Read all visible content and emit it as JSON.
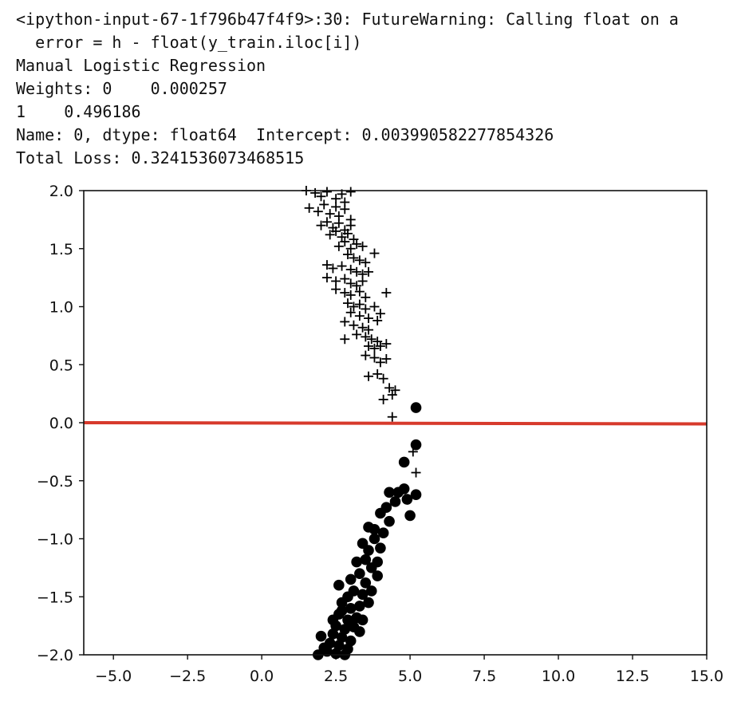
{
  "console": {
    "lines": [
      "<ipython-input-67-1f796b47f4f9>:30: FutureWarning: Calling float on a",
      "  error = h - float(y_train.iloc[i])",
      "Manual Logistic Regression",
      "Weights: 0    0.000257",
      "1    0.496186",
      "Name: 0, dtype: float64  Intercept: 0.003990582277854326",
      "Total Loss: 0.3241536073468515"
    ]
  },
  "chart_data": {
    "type": "scatter",
    "xlim": [
      -6,
      15
    ],
    "ylim": [
      -2.0,
      2.0
    ],
    "xticks": [
      -5.0,
      -2.5,
      0.0,
      2.5,
      5.0,
      7.5,
      10.0,
      12.5,
      15.0
    ],
    "xtick_labels": [
      "−5.0",
      "−2.5",
      "0.0",
      "2.5",
      "5.0",
      "7.5",
      "10.0",
      "12.5",
      "15.0"
    ],
    "yticks": [
      2.0,
      1.5,
      1.0,
      0.5,
      0.0,
      -0.5,
      -1.0,
      -1.5,
      -2.0
    ],
    "ytick_labels": [
      "2.0",
      "1.5",
      "1.0",
      "0.5",
      "0.0",
      "−0.5",
      "−1.0",
      "−1.5",
      "−2.0"
    ],
    "grid": false,
    "series": [
      {
        "marker": "plus",
        "color": "#000000",
        "points": [
          [
            1.5,
            2.0
          ],
          [
            1.8,
            1.98
          ],
          [
            2.0,
            1.95
          ],
          [
            2.2,
            1.99
          ],
          [
            2.5,
            1.93
          ],
          [
            2.7,
            1.97
          ],
          [
            2.8,
            1.9
          ],
          [
            3.0,
            1.99
          ],
          [
            1.6,
            1.85
          ],
          [
            1.9,
            1.82
          ],
          [
            2.1,
            1.88
          ],
          [
            2.3,
            1.8
          ],
          [
            2.5,
            1.86
          ],
          [
            2.6,
            1.78
          ],
          [
            2.8,
            1.84
          ],
          [
            3.0,
            1.75
          ],
          [
            2.0,
            1.7
          ],
          [
            2.2,
            1.73
          ],
          [
            2.4,
            1.68
          ],
          [
            2.6,
            1.72
          ],
          [
            2.8,
            1.66
          ],
          [
            3.0,
            1.7
          ],
          [
            2.3,
            1.62
          ],
          [
            2.5,
            1.65
          ],
          [
            2.7,
            1.6
          ],
          [
            2.9,
            1.63
          ],
          [
            3.1,
            1.58
          ],
          [
            2.6,
            1.52
          ],
          [
            2.8,
            1.56
          ],
          [
            3.0,
            1.5
          ],
          [
            3.2,
            1.54
          ],
          [
            3.4,
            1.52
          ],
          [
            3.8,
            1.46
          ],
          [
            2.9,
            1.45
          ],
          [
            3.1,
            1.42
          ],
          [
            3.3,
            1.4
          ],
          [
            3.5,
            1.38
          ],
          [
            2.2,
            1.36
          ],
          [
            2.4,
            1.33
          ],
          [
            2.7,
            1.35
          ],
          [
            3.0,
            1.32
          ],
          [
            3.2,
            1.3
          ],
          [
            3.4,
            1.28
          ],
          [
            3.6,
            1.3
          ],
          [
            2.2,
            1.25
          ],
          [
            2.5,
            1.22
          ],
          [
            2.8,
            1.24
          ],
          [
            3.0,
            1.2
          ],
          [
            3.2,
            1.18
          ],
          [
            3.4,
            1.22
          ],
          [
            2.5,
            1.15
          ],
          [
            2.8,
            1.12
          ],
          [
            3.0,
            1.1
          ],
          [
            3.3,
            1.13
          ],
          [
            3.5,
            1.08
          ],
          [
            4.2,
            1.12
          ],
          [
            2.9,
            1.03
          ],
          [
            3.1,
            1.0
          ],
          [
            3.3,
            1.02
          ],
          [
            3.5,
            0.98
          ],
          [
            3.8,
            1.0
          ],
          [
            3.0,
            0.95
          ],
          [
            3.3,
            0.92
          ],
          [
            3.6,
            0.9
          ],
          [
            3.9,
            0.88
          ],
          [
            4.0,
            0.94
          ],
          [
            2.8,
            0.87
          ],
          [
            3.1,
            0.84
          ],
          [
            3.4,
            0.82
          ],
          [
            3.6,
            0.8
          ],
          [
            3.2,
            0.76
          ],
          [
            3.5,
            0.74
          ],
          [
            3.7,
            0.72
          ],
          [
            2.8,
            0.72
          ],
          [
            3.9,
            0.7
          ],
          [
            3.6,
            0.66
          ],
          [
            3.8,
            0.64
          ],
          [
            4.0,
            0.66
          ],
          [
            4.2,
            0.68
          ],
          [
            3.5,
            0.58
          ],
          [
            3.8,
            0.56
          ],
          [
            4.0,
            0.52
          ],
          [
            4.2,
            0.55
          ],
          [
            3.6,
            0.4
          ],
          [
            3.9,
            0.42
          ],
          [
            4.1,
            0.38
          ],
          [
            4.3,
            0.3
          ],
          [
            4.5,
            0.28
          ],
          [
            4.1,
            0.2
          ],
          [
            4.4,
            0.24
          ],
          [
            4.4,
            0.05
          ],
          [
            5.1,
            -0.25
          ],
          [
            5.2,
            -0.43
          ]
        ]
      },
      {
        "marker": "circle",
        "color": "#000000",
        "points": [
          [
            5.2,
            0.13
          ],
          [
            5.2,
            -0.19
          ],
          [
            4.8,
            -0.34
          ],
          [
            5.2,
            -0.62
          ],
          [
            4.8,
            -0.57
          ],
          [
            4.6,
            -0.6
          ],
          [
            4.9,
            -0.66
          ],
          [
            4.3,
            -0.6
          ],
          [
            4.5,
            -0.68
          ],
          [
            4.2,
            -0.73
          ],
          [
            5.0,
            -0.8
          ],
          [
            4.3,
            -0.85
          ],
          [
            4.0,
            -0.78
          ],
          [
            4.1,
            -0.95
          ],
          [
            3.8,
            -0.92
          ],
          [
            3.6,
            -0.9
          ],
          [
            3.8,
            -1.0
          ],
          [
            3.4,
            -1.04
          ],
          [
            3.6,
            -1.1
          ],
          [
            4.0,
            -1.08
          ],
          [
            3.5,
            -1.18
          ],
          [
            3.2,
            -1.2
          ],
          [
            3.7,
            -1.25
          ],
          [
            3.3,
            -1.3
          ],
          [
            3.0,
            -1.35
          ],
          [
            3.5,
            -1.38
          ],
          [
            3.9,
            -1.32
          ],
          [
            3.1,
            -1.45
          ],
          [
            2.9,
            -1.5
          ],
          [
            3.4,
            -1.48
          ],
          [
            3.7,
            -1.45
          ],
          [
            2.7,
            -1.55
          ],
          [
            3.0,
            -1.6
          ],
          [
            3.3,
            -1.58
          ],
          [
            2.6,
            -1.65
          ],
          [
            2.9,
            -1.7
          ],
          [
            3.2,
            -1.68
          ],
          [
            2.5,
            -1.75
          ],
          [
            2.8,
            -1.78
          ],
          [
            3.1,
            -1.76
          ],
          [
            3.4,
            -1.7
          ],
          [
            2.4,
            -1.82
          ],
          [
            2.7,
            -1.85
          ],
          [
            3.0,
            -1.88
          ],
          [
            2.3,
            -1.9
          ],
          [
            2.6,
            -1.92
          ],
          [
            2.9,
            -1.95
          ],
          [
            2.2,
            -1.97
          ],
          [
            2.5,
            -1.99
          ],
          [
            2.8,
            -2.0
          ],
          [
            1.9,
            -2.0
          ],
          [
            2.1,
            -1.94
          ],
          [
            2.0,
            -1.84
          ],
          [
            2.7,
            -1.62
          ],
          [
            3.6,
            -1.55
          ],
          [
            2.4,
            -1.7
          ],
          [
            3.3,
            -1.8
          ],
          [
            2.6,
            -1.4
          ],
          [
            3.9,
            -1.2
          ]
        ]
      }
    ],
    "decision_line": {
      "color": "#d73a2c",
      "points": [
        [
          -6,
          0.0
        ],
        [
          15,
          -0.01
        ]
      ]
    }
  }
}
